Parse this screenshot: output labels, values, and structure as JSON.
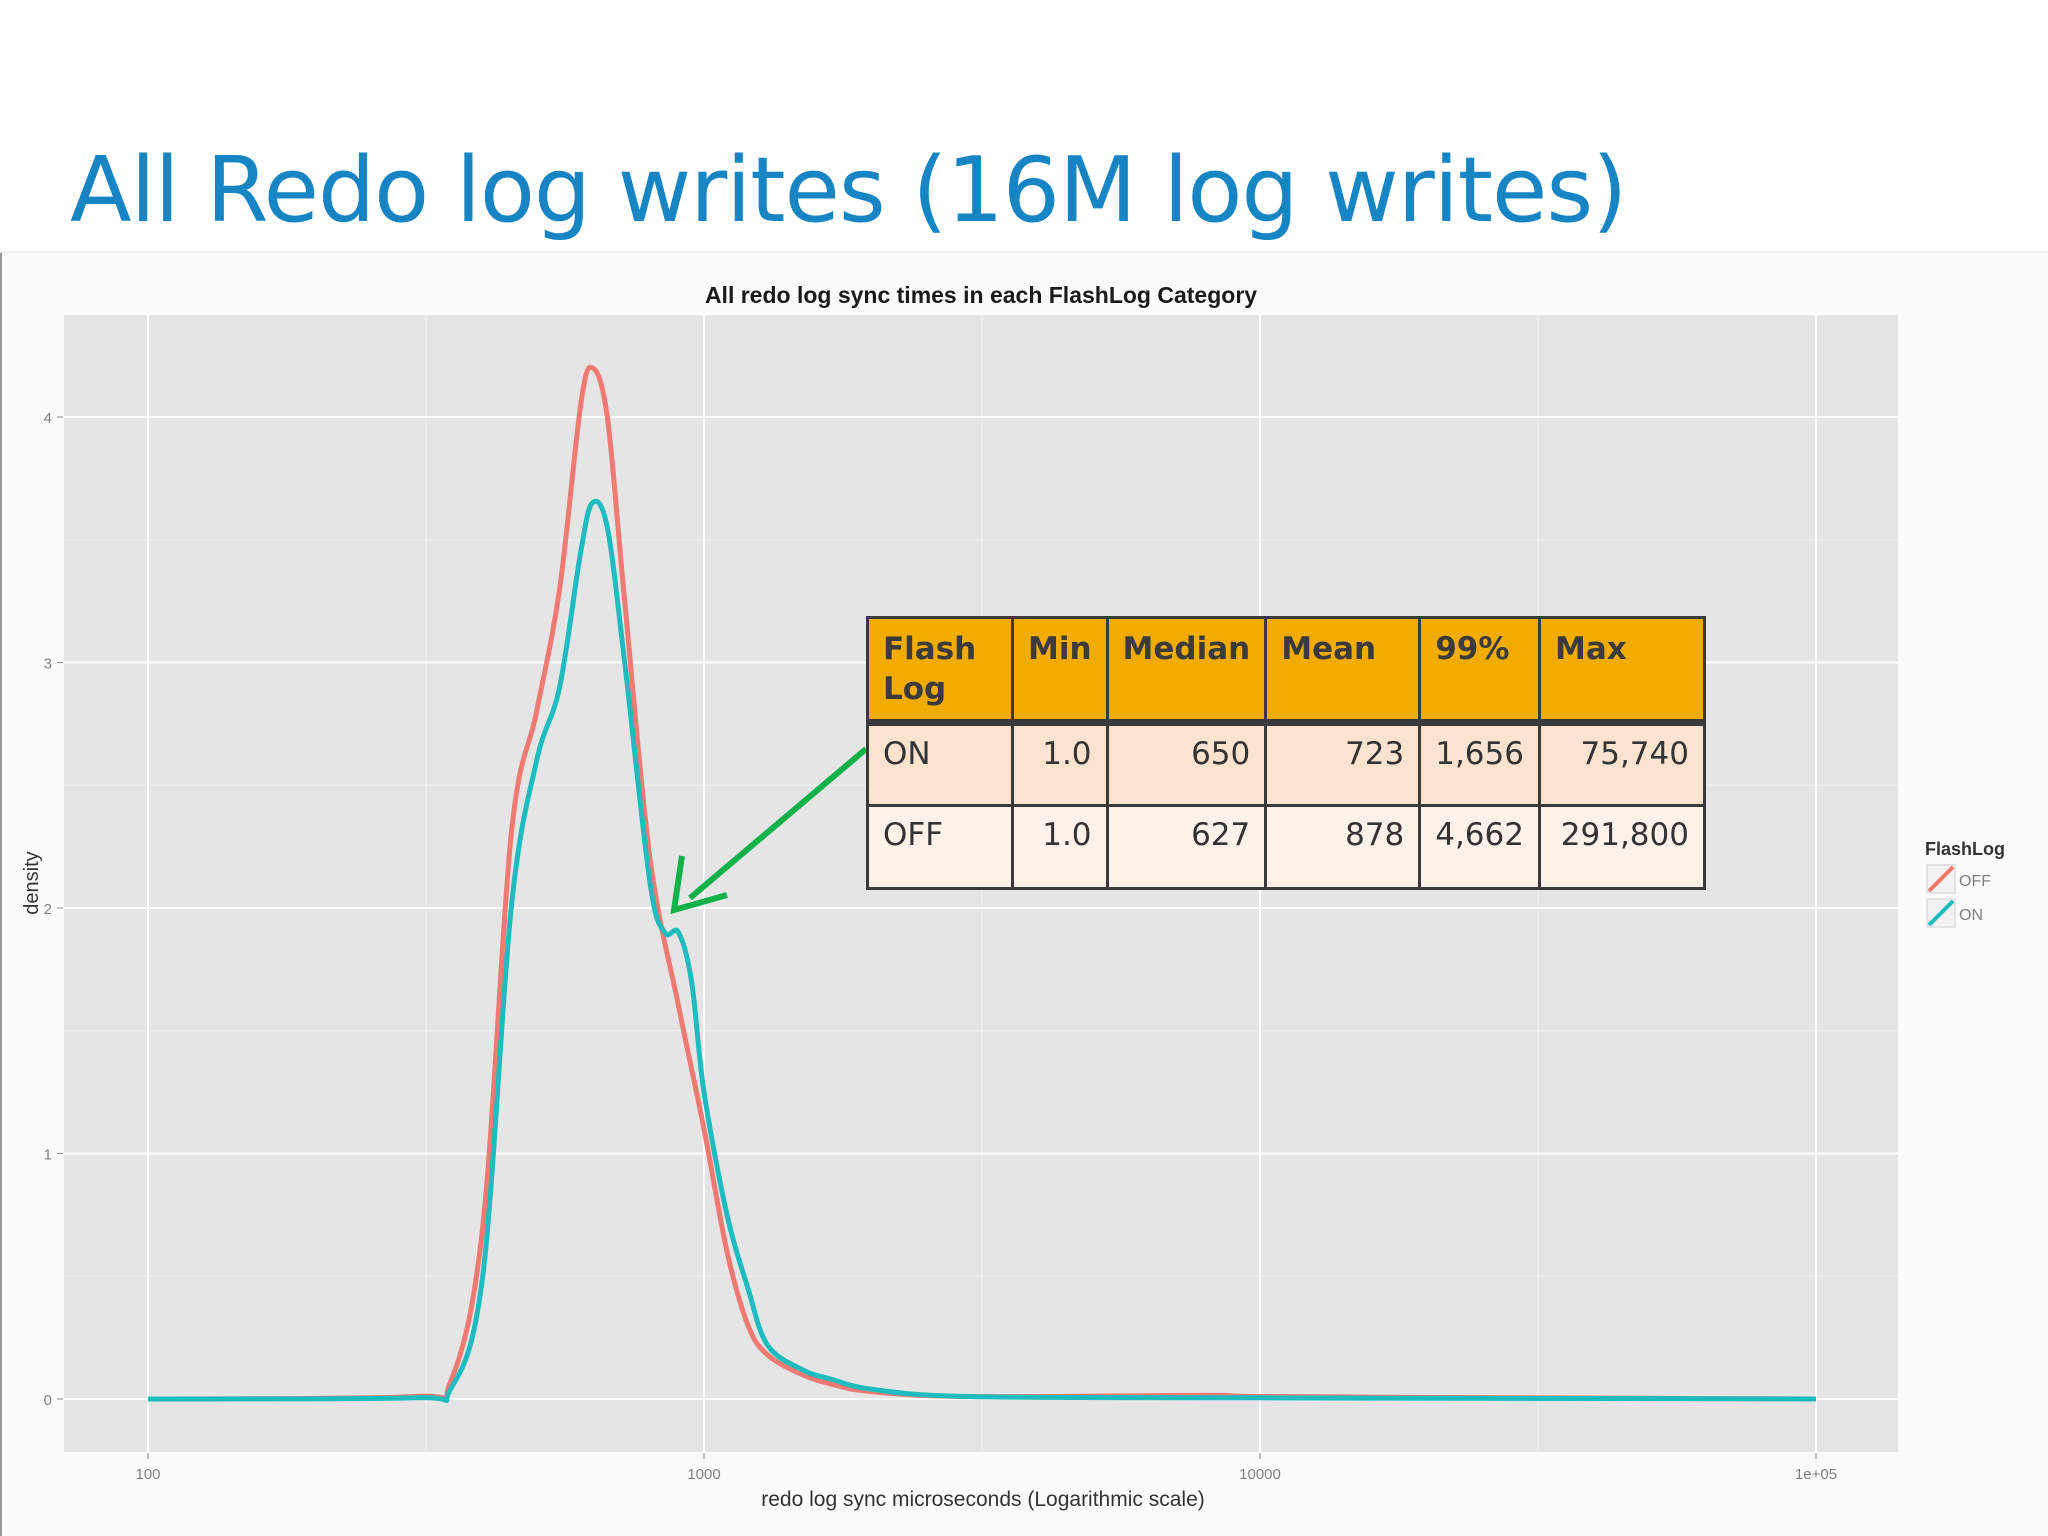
{
  "slide_title": "All Redo log writes (16M log writes)",
  "chart_data": {
    "type": "line",
    "title": "All redo log sync times in each FlashLog Category",
    "xlabel": "redo log sync microseconds (Logarithmic scale)",
    "ylabel": "density",
    "x_scale": "log10",
    "xlim": [
      100,
      100000
    ],
    "ylim": [
      0,
      4.4
    ],
    "x_ticks": [
      {
        "value": 100,
        "label": "100"
      },
      {
        "value": 1000,
        "label": "1000"
      },
      {
        "value": 10000,
        "label": "10000"
      },
      {
        "value": 100000,
        "label": "1e+05"
      }
    ],
    "y_ticks": [
      {
        "value": 0,
        "label": "0"
      },
      {
        "value": 1,
        "label": "1"
      },
      {
        "value": 2,
        "label": "2"
      },
      {
        "value": 3,
        "label": "3"
      },
      {
        "value": 4,
        "label": "4"
      }
    ],
    "grid": true,
    "legend": {
      "title": "FlashLog",
      "position": "right"
    },
    "series": [
      {
        "name": "OFF",
        "color": "#f07a72",
        "points": [
          [
            100,
            0
          ],
          [
            300,
            0.01
          ],
          [
            350,
            0.07
          ],
          [
            400,
            0.7
          ],
          [
            450,
            2.3
          ],
          [
            500,
            2.8
          ],
          [
            550,
            3.3
          ],
          [
            600,
            4.05
          ],
          [
            630,
            4.2
          ],
          [
            670,
            4.0
          ],
          [
            720,
            3.25
          ],
          [
            800,
            2.2
          ],
          [
            900,
            1.6
          ],
          [
            1000,
            1.1
          ],
          [
            1100,
            0.6
          ],
          [
            1200,
            0.3
          ],
          [
            1300,
            0.18
          ],
          [
            1500,
            0.1
          ],
          [
            1700,
            0.06
          ],
          [
            2000,
            0.03
          ],
          [
            3000,
            0.01
          ],
          [
            8000,
            0.015
          ],
          [
            10000,
            0.01
          ],
          [
            30000,
            0.005
          ],
          [
            100000,
            0
          ]
        ]
      },
      {
        "name": "ON",
        "color": "#1fbcbf",
        "points": [
          [
            100,
            0
          ],
          [
            300,
            0.005
          ],
          [
            350,
            0.04
          ],
          [
            400,
            0.5
          ],
          [
            450,
            2.0
          ],
          [
            500,
            2.6
          ],
          [
            550,
            2.9
          ],
          [
            600,
            3.45
          ],
          [
            630,
            3.65
          ],
          [
            670,
            3.55
          ],
          [
            720,
            3.0
          ],
          [
            800,
            2.1
          ],
          [
            850,
            1.9
          ],
          [
            900,
            1.9
          ],
          [
            950,
            1.7
          ],
          [
            1000,
            1.25
          ],
          [
            1100,
            0.75
          ],
          [
            1200,
            0.45
          ],
          [
            1300,
            0.22
          ],
          [
            1500,
            0.12
          ],
          [
            1700,
            0.08
          ],
          [
            2000,
            0.04
          ],
          [
            3000,
            0.01
          ],
          [
            10000,
            0.005
          ],
          [
            100000,
            0
          ]
        ]
      }
    ]
  },
  "table": {
    "headers": [
      "Flash\nLog",
      "Min",
      "Median",
      "Mean",
      "99%",
      "Max"
    ],
    "rows": [
      [
        "ON",
        "1.0",
        "650",
        "723",
        "1,656",
        "75,740"
      ],
      [
        "OFF",
        "1.0",
        "627",
        "878",
        "4,662",
        "291,800"
      ]
    ],
    "header_color": "#f2ac00",
    "row_colors": [
      "#fbe3cf",
      "#fdf1e9"
    ]
  },
  "annotation": {
    "arrow_color": "#12b14a"
  }
}
